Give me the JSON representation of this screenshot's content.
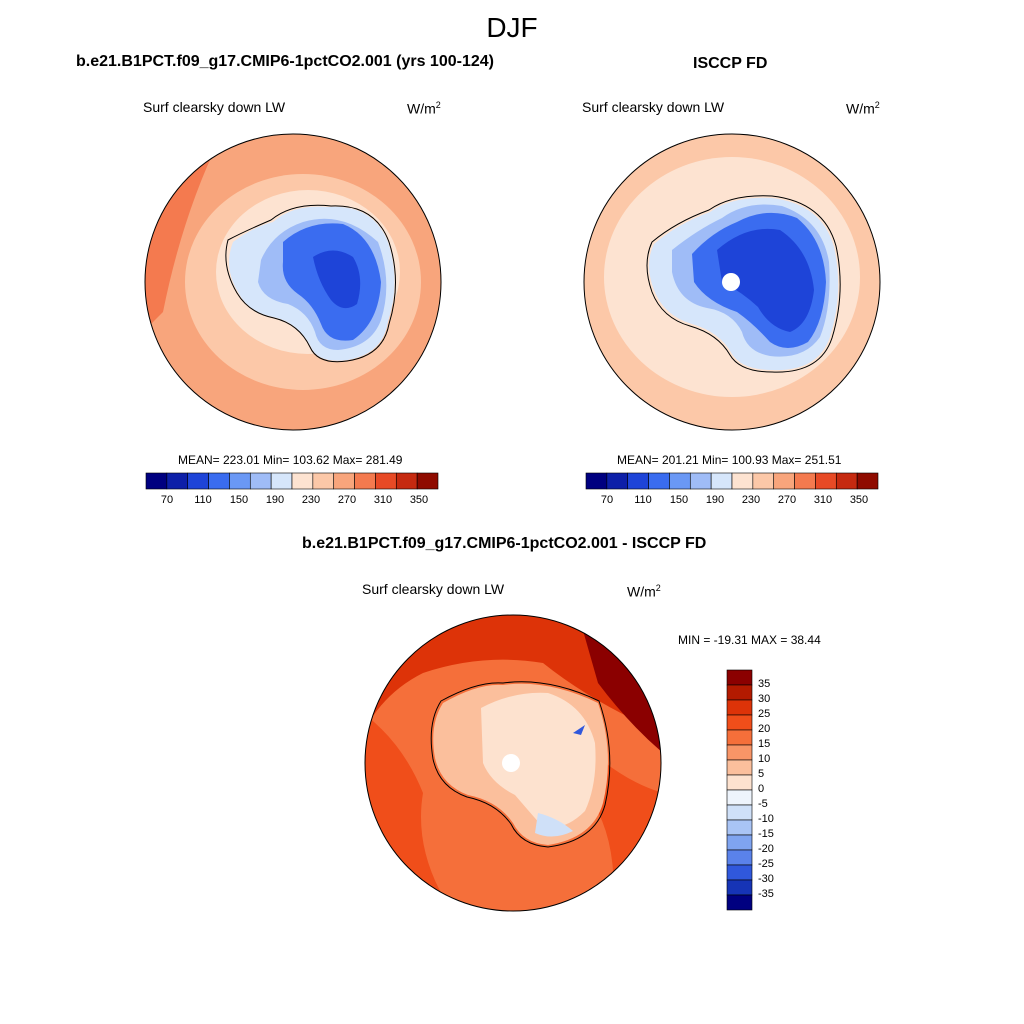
{
  "title": "DJF",
  "panels": {
    "model": {
      "title": "b.e21.B1PCT.f09_g17.CMIP6-1pctCO2.001 (yrs 100-124)",
      "variable": "Surf clearsky down LW",
      "units_base": "W/m",
      "units_exp": "2",
      "stats": "MEAN= 223.01  Min= 103.62  Max= 281.49",
      "colorbar_ticks": [
        "70",
        "110",
        "150",
        "190",
        "230",
        "270",
        "310",
        "350"
      ]
    },
    "obs": {
      "title": "ISCCP FD",
      "variable": "Surf clearsky down LW",
      "units_base": "W/m",
      "units_exp": "2",
      "stats": "MEAN= 201.21  Min= 100.93  Max= 251.51",
      "colorbar_ticks": [
        "70",
        "110",
        "150",
        "190",
        "230",
        "270",
        "310",
        "350"
      ]
    },
    "diff": {
      "title": "b.e21.B1PCT.f09_g17.CMIP6-1pctCO2.001 - ISCCP FD",
      "variable": "Surf clearsky down LW",
      "units_base": "W/m",
      "units_exp": "2",
      "stats": "MIN = -19.31 MAX =  38.44",
      "colorbar_ticks": [
        "35",
        "30",
        "25",
        "20",
        "15",
        "10",
        "5",
        "0",
        "-5",
        "-10",
        "-15",
        "-20",
        "-25",
        "-30",
        "-35"
      ]
    }
  },
  "colors": {
    "abs_scale": [
      "#000080",
      "#0d1fa8",
      "#1e44d8",
      "#3a6cf0",
      "#6a98f5",
      "#9fbcf7",
      "#d6e6fb",
      "#fde3d1",
      "#fcc8a8",
      "#f8a57c",
      "#f47a4f",
      "#e84a26",
      "#c62a10",
      "#8f0b00"
    ],
    "diff_scale": [
      "#8b0000",
      "#b31a00",
      "#dd3308",
      "#f04e1a",
      "#f56f3a",
      "#f89567",
      "#fbbf9c",
      "#fde2cf",
      "#eef4fc",
      "#cfe0f8",
      "#a9c4f5",
      "#7fa4f0",
      "#5a82ea",
      "#3058dc",
      "#1634b6",
      "#000080"
    ]
  }
}
